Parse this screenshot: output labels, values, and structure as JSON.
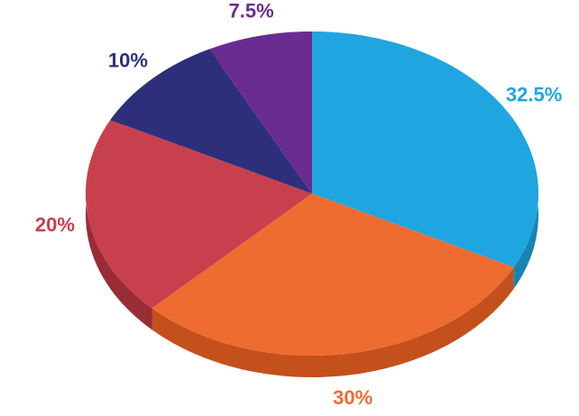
{
  "chart_data": {
    "type": "pie",
    "values": [
      32.5,
      30,
      20,
      10,
      7.5
    ],
    "value_labels": [
      "32.5%",
      "30%",
      "20%",
      "10%",
      "7.5%"
    ],
    "colors": [
      "#1fa6e0",
      "#ef6c30",
      "#c8404d",
      "#2d2f7b",
      "#6a2c91"
    ],
    "side_colors": [
      "#1784b3",
      "#c4501c",
      "#9a2c38",
      "#20225c",
      "#4f1f6d"
    ],
    "three_d": true
  }
}
